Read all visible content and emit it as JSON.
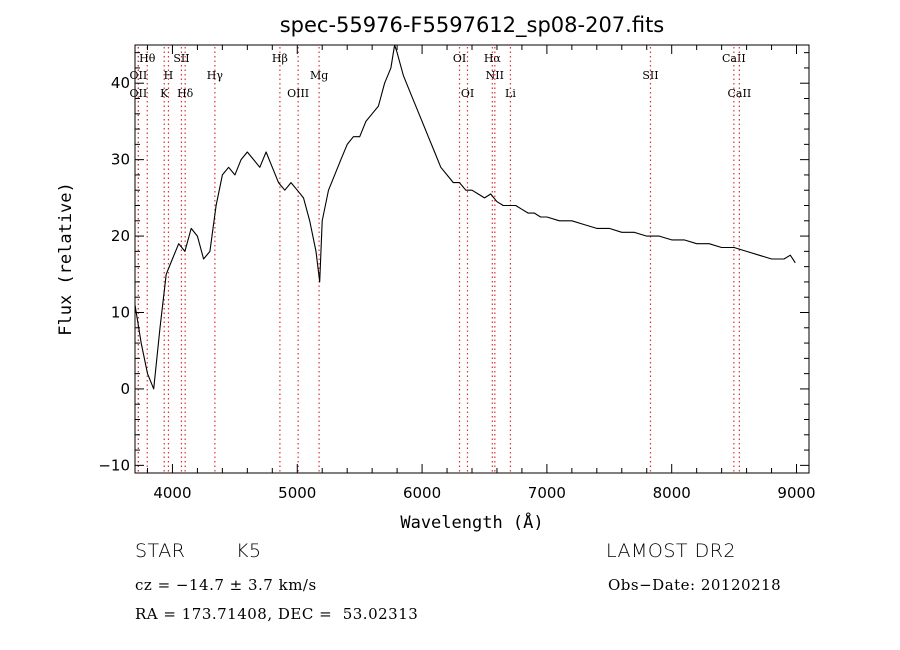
{
  "chart_data": {
    "type": "line",
    "title": "spec-55976-F5597612_sp08-207.fits",
    "xlabel": "Wavelength (Å)",
    "ylabel": "Flux (relative)",
    "xlim": [
      3700,
      9100
    ],
    "ylim": [
      -11,
      45
    ],
    "xticks": [
      4000,
      5000,
      6000,
      7000,
      8000,
      9000
    ],
    "yticks": [
      -10,
      0,
      10,
      20,
      30,
      40
    ],
    "grid": false,
    "series": [
      {
        "color": "#000000",
        "x": [
          3700,
          3750,
          3800,
          3850,
          3900,
          3950,
          4000,
          4050,
          4100,
          4150,
          4200,
          4250,
          4300,
          4350,
          4400,
          4450,
          4500,
          4550,
          4600,
          4650,
          4700,
          4750,
          4800,
          4850,
          4900,
          4950,
          5000,
          5050,
          5100,
          5150,
          5180,
          5200,
          5250,
          5300,
          5350,
          5400,
          5450,
          5500,
          5550,
          5600,
          5650,
          5700,
          5750,
          5780,
          5800,
          5850,
          5900,
          5950,
          6000,
          6050,
          6100,
          6150,
          6200,
          6250,
          6300,
          6350,
          6400,
          6450,
          6500,
          6550,
          6600,
          6650,
          6700,
          6750,
          6800,
          6850,
          6900,
          6950,
          7000,
          7100,
          7200,
          7300,
          7400,
          7500,
          7600,
          7700,
          7800,
          7900,
          8000,
          8100,
          8200,
          8300,
          8400,
          8500,
          8600,
          8700,
          8800,
          8900,
          8950,
          8990
        ],
        "y": [
          11,
          6,
          2,
          0,
          8,
          15,
          17,
          19,
          18,
          21,
          20,
          17,
          18,
          24,
          28,
          29,
          28,
          30,
          31,
          30,
          29,
          31,
          29,
          27,
          26,
          27,
          26,
          25,
          22,
          18,
          14,
          22,
          26,
          28,
          30,
          32,
          33,
          33,
          35,
          36,
          37,
          40,
          42,
          45,
          44,
          41,
          39,
          37,
          35,
          33,
          31,
          29,
          28,
          27,
          27,
          26,
          26,
          25.5,
          25,
          25.5,
          24.5,
          24,
          24,
          24,
          23.5,
          23,
          23,
          22.5,
          22.5,
          22,
          22,
          21.5,
          21,
          21,
          20.5,
          20.5,
          20,
          20,
          19.5,
          19.5,
          19,
          19,
          18.5,
          18.5,
          18,
          17.5,
          17,
          17,
          17.5,
          16.5
        ]
      }
    ],
    "line_markers": [
      {
        "label": "Hθ",
        "x": 3798,
        "row": 1
      },
      {
        "label": "OII",
        "x": 3727,
        "row": 2
      },
      {
        "label": "OII",
        "x": 3727,
        "row": 3
      },
      {
        "label": "SII",
        "x": 4072,
        "row": 1
      },
      {
        "label": "H",
        "x": 3968,
        "row": 2
      },
      {
        "label": "K",
        "x": 3934,
        "row": 3
      },
      {
        "label": "Hδ",
        "x": 4102,
        "row": 3
      },
      {
        "label": "Hγ",
        "x": 4340,
        "row": 2
      },
      {
        "label": "Hβ",
        "x": 4861,
        "row": 1
      },
      {
        "label": "Mg",
        "x": 5175,
        "row": 2
      },
      {
        "label": "OIII",
        "x": 5007,
        "row": 3
      },
      {
        "label": "OI",
        "x": 6300,
        "row": 1
      },
      {
        "label": "OI",
        "x": 6364,
        "row": 3
      },
      {
        "label": "Hα",
        "x": 6563,
        "row": 1
      },
      {
        "label": "NII",
        "x": 6583,
        "row": 2
      },
      {
        "label": "Li",
        "x": 6708,
        "row": 3
      },
      {
        "label": "SII",
        "x": 7830,
        "row": 2
      },
      {
        "label": "CaII",
        "x": 8498,
        "row": 1
      },
      {
        "label": "CaII",
        "x": 8542,
        "row": 3
      }
    ]
  },
  "info": {
    "object_class": "STAR",
    "subclass": "K5",
    "survey": "LAMOST DR2",
    "cz": "cz = −14.7 ± 3.7 km/s",
    "obs_date": "Obs−Date: 20120218",
    "coords": "RA = 173.71408, DEC =  53.02313"
  }
}
